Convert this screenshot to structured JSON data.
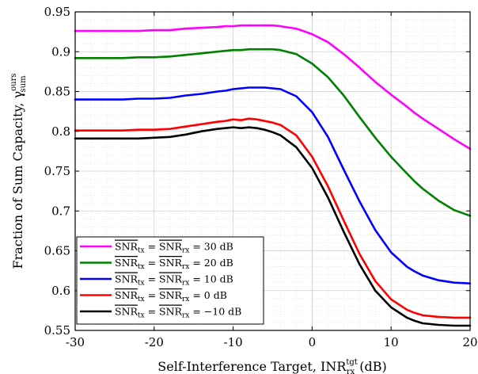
{
  "chart_data": {
    "type": "line",
    "title": "",
    "xlabel": "Self-Interference Target, INR_rx^tgt (dB)",
    "xlabel_main": "Self-Interference Target, INR",
    "xlabel_sup": "tgt",
    "xlabel_sub": "rx",
    "xlabel_unit": "(dB)",
    "ylabel": "Fraction of Sum Capacity, γ_sum^ours",
    "ylabel_main": "Fraction of Sum Capacity, γ",
    "ylabel_sup": "ours",
    "ylabel_sub": "sum",
    "xlim": [
      -30,
      20
    ],
    "ylim": [
      0.55,
      0.95
    ],
    "xticks": [
      "-30",
      "-20",
      "-10",
      "0",
      "10",
      "20"
    ],
    "xtick_values": [
      -30,
      -20,
      -10,
      0,
      10,
      20
    ],
    "yticks": [
      "0.55",
      "0.6",
      "0.65",
      "0.7",
      "0.75",
      "0.8",
      "0.85",
      "0.9",
      "0.95"
    ],
    "ytick_values": [
      0.55,
      0.6,
      0.65,
      0.7,
      0.75,
      0.8,
      0.85,
      0.9,
      0.95
    ],
    "grid": true,
    "legend_position": "bottom-left",
    "x": [
      -30,
      -28,
      -26,
      -24,
      -22,
      -20,
      -18,
      -16,
      -14,
      -12,
      -11,
      -10,
      -9,
      -8,
      -7,
      -6,
      -5,
      -4,
      -2,
      0,
      2,
      4,
      6,
      8,
      10,
      12,
      13,
      14,
      16,
      18,
      20
    ],
    "series": [
      {
        "name": "SNR_tx = SNR_rx = 30 dB",
        "legend": {
          "a": "SNR",
          "as": "tx",
          "eq1": " = ",
          "b": "SNR",
          "bs": "rx",
          "eq2": " = 30 dB"
        },
        "color": "#ff00ff",
        "values": [
          0.926,
          0.926,
          0.926,
          0.926,
          0.926,
          0.927,
          0.927,
          0.929,
          0.93,
          0.931,
          0.932,
          0.932,
          0.933,
          0.933,
          0.933,
          0.933,
          0.933,
          0.932,
          0.929,
          0.922,
          0.912,
          0.897,
          0.88,
          0.862,
          0.846,
          0.831,
          0.823,
          0.816,
          0.803,
          0.79,
          0.778
        ]
      },
      {
        "name": "SNR_tx = SNR_rx = 20 dB",
        "legend": {
          "a": "SNR",
          "as": "tx",
          "eq1": " = ",
          "b": "SNR",
          "bs": "rx",
          "eq2": " = 20 dB"
        },
        "color": "#008000",
        "values": [
          0.892,
          0.892,
          0.892,
          0.892,
          0.893,
          0.893,
          0.894,
          0.896,
          0.898,
          0.9,
          0.901,
          0.902,
          0.902,
          0.903,
          0.903,
          0.903,
          0.903,
          0.902,
          0.897,
          0.885,
          0.868,
          0.845,
          0.818,
          0.792,
          0.768,
          0.747,
          0.737,
          0.728,
          0.713,
          0.701,
          0.694
        ]
      },
      {
        "name": "SNR_tx = SNR_rx = 10 dB",
        "legend": {
          "a": "SNR",
          "as": "tx",
          "eq1": " = ",
          "b": "SNR",
          "bs": "rx",
          "eq2": " = 10 dB"
        },
        "color": "#0000ff",
        "values": [
          0.84,
          0.84,
          0.84,
          0.84,
          0.841,
          0.841,
          0.842,
          0.845,
          0.847,
          0.85,
          0.851,
          0.853,
          0.854,
          0.855,
          0.855,
          0.855,
          0.854,
          0.853,
          0.844,
          0.824,
          0.793,
          0.752,
          0.712,
          0.676,
          0.648,
          0.63,
          0.624,
          0.619,
          0.613,
          0.61,
          0.609
        ]
      },
      {
        "name": "SNR_tx = SNR_rx = 0 dB",
        "legend": {
          "a": "SNR",
          "as": "tx",
          "eq1": " = ",
          "b": "SNR",
          "bs": "rx",
          "eq2": " = 0 dB"
        },
        "color": "#ff0000",
        "values": [
          0.801,
          0.801,
          0.801,
          0.801,
          0.802,
          0.802,
          0.803,
          0.806,
          0.809,
          0.812,
          0.813,
          0.815,
          0.814,
          0.816,
          0.815,
          0.813,
          0.811,
          0.808,
          0.795,
          0.768,
          0.731,
          0.688,
          0.646,
          0.612,
          0.589,
          0.576,
          0.572,
          0.569,
          0.567,
          0.566,
          0.566
        ]
      },
      {
        "name": "SNR_tx = SNR_rx = −10 dB",
        "legend": {
          "a": "SNR",
          "as": "tx",
          "eq1": " = ",
          "b": "SNR",
          "bs": "rx",
          "eq2": " = −10 dB"
        },
        "color": "#000000",
        "values": [
          0.791,
          0.791,
          0.791,
          0.791,
          0.791,
          0.792,
          0.793,
          0.796,
          0.8,
          0.803,
          0.804,
          0.805,
          0.804,
          0.805,
          0.804,
          0.802,
          0.799,
          0.795,
          0.78,
          0.754,
          0.717,
          0.674,
          0.633,
          0.6,
          0.579,
          0.566,
          0.562,
          0.559,
          0.557,
          0.556,
          0.556
        ]
      }
    ]
  }
}
